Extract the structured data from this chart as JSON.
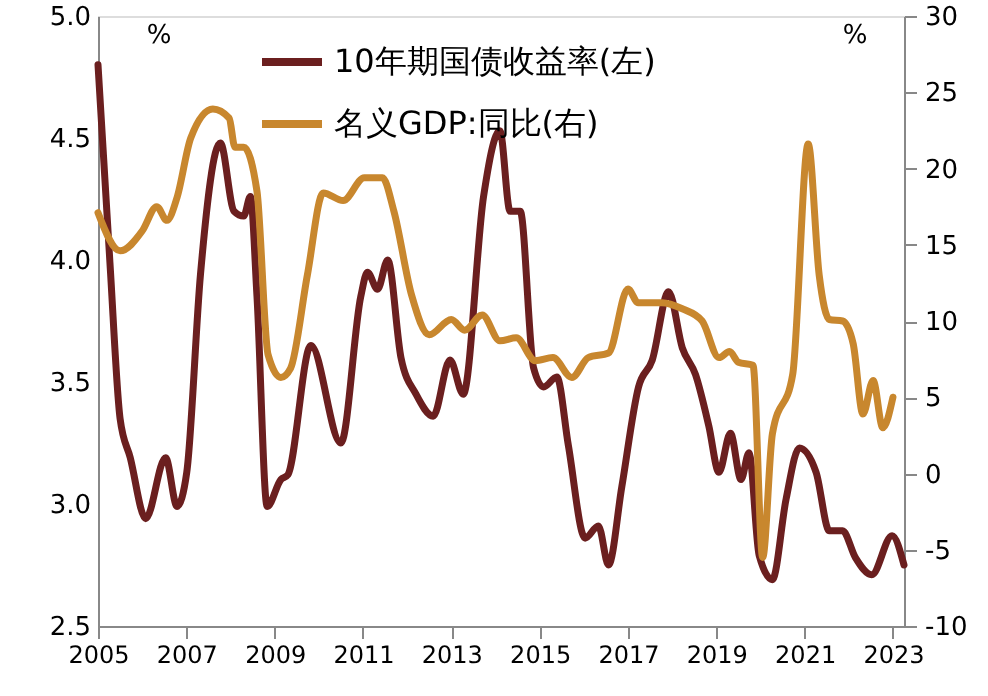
{
  "chart_data": {
    "type": "line",
    "ylabel": "%",
    "y2label": "%",
    "legend": "top",
    "grid": false,
    "marker": "none",
    "line_style": "solid",
    "xlim": [
      2005,
      2023.25
    ],
    "xticks": [
      2005,
      2007,
      2009,
      2011,
      2013,
      2015,
      2017,
      2019,
      2021,
      2023
    ],
    "ylim": [
      2.5,
      5.0
    ],
    "yticks": [
      {
        "value": 2.5,
        "label": "2.5"
      },
      {
        "value": 3.0,
        "label": "3.0"
      },
      {
        "value": 3.5,
        "label": "3.5"
      },
      {
        "value": 4.0,
        "label": "4.0"
      },
      {
        "value": 4.5,
        "label": "4.5"
      },
      {
        "value": 5.0,
        "label": "5.0"
      }
    ],
    "y2lim": [
      -10,
      30
    ],
    "y2ticks": [
      -10,
      -5,
      0,
      5,
      10,
      15,
      20,
      25,
      30
    ],
    "series": [
      {
        "name": "10年期国债收益率(左)",
        "color": "#6b1f1f",
        "x": [
          2005.0,
          2005.27,
          2005.5,
          2005.73,
          2006.08,
          2006.53,
          2006.79,
          2007.01,
          2007.32,
          2007.77,
          2008.08,
          2008.3,
          2008.45,
          2008.6,
          2008.83,
          2009.14,
          2009.3,
          2009.82,
          2010.5,
          2010.95,
          2011.1,
          2011.33,
          2011.56,
          2011.86,
          2012.2,
          2012.59,
          2012.97,
          2013.27,
          2013.73,
          2014.1,
          2014.33,
          2014.56,
          2014.86,
          2015.09,
          2015.39,
          2015.65,
          2016.03,
          2016.33,
          2016.56,
          2016.86,
          2017.24,
          2017.55,
          2017.92,
          2018.23,
          2018.53,
          2018.83,
          2019.06,
          2019.32,
          2019.56,
          2019.74,
          2019.97,
          2020.27,
          2020.58,
          2020.88,
          2021.26,
          2021.56,
          2021.86,
          2022.15,
          2022.52,
          2022.98,
          2023.25
        ],
        "values": [
          4.8,
          3.99,
          3.35,
          3.19,
          2.94,
          3.19,
          2.99,
          3.13,
          3.94,
          4.48,
          4.2,
          4.18,
          4.26,
          3.85,
          2.99,
          3.1,
          3.12,
          3.65,
          3.25,
          3.85,
          3.95,
          3.88,
          4.0,
          3.6,
          3.45,
          3.36,
          3.59,
          3.45,
          4.26,
          4.53,
          4.2,
          4.2,
          3.56,
          3.48,
          3.52,
          3.24,
          2.86,
          2.91,
          2.75,
          3.07,
          3.48,
          3.59,
          3.87,
          3.64,
          3.53,
          3.32,
          3.13,
          3.29,
          3.1,
          3.21,
          2.79,
          2.69,
          3.02,
          3.23,
          3.13,
          2.89,
          2.89,
          2.78,
          2.71,
          2.87,
          2.75
        ]
      },
      {
        "name": "名义GDP:同比(右)",
        "color": "#c8872e",
        "axis": "y2",
        "x": [
          2005.0,
          2005.5,
          2006.0,
          2006.33,
          2006.56,
          2006.79,
          2007.1,
          2007.6,
          2007.97,
          2008.1,
          2008.3,
          2008.6,
          2008.85,
          2009.14,
          2009.36,
          2009.74,
          2010.1,
          2010.55,
          2011.03,
          2011.44,
          2011.7,
          2012.1,
          2012.5,
          2013.0,
          2013.3,
          2013.7,
          2014.1,
          2014.47,
          2014.9,
          2015.3,
          2015.73,
          2016.1,
          2016.56,
          2017.0,
          2017.23,
          2017.77,
          2018.23,
          2018.68,
          2019.06,
          2019.3,
          2019.5,
          2019.83,
          2020.05,
          2020.27,
          2020.73,
          2021.08,
          2021.33,
          2021.56,
          2021.86,
          2022.1,
          2022.32,
          2022.55,
          2022.77,
          2023.0
        ],
        "values": [
          17.1,
          14.6,
          15.9,
          17.5,
          16.6,
          18.1,
          22.0,
          23.9,
          23.3,
          21.4,
          21.4,
          18.5,
          7.8,
          6.3,
          6.9,
          13.0,
          18.4,
          17.9,
          19.4,
          19.4,
          17.2,
          11.7,
          9.1,
          10.1,
          9.4,
          10.4,
          8.7,
          8.9,
          7.4,
          7.6,
          6.3,
          7.6,
          7.9,
          12.1,
          11.2,
          11.2,
          10.8,
          10.0,
          7.6,
          8.0,
          7.3,
          7.1,
          -5.5,
          2.6,
          6.5,
          21.6,
          13.0,
          10.1,
          10.0,
          8.5,
          3.9,
          6.1,
          3.0,
          5.0
        ]
      }
    ]
  }
}
